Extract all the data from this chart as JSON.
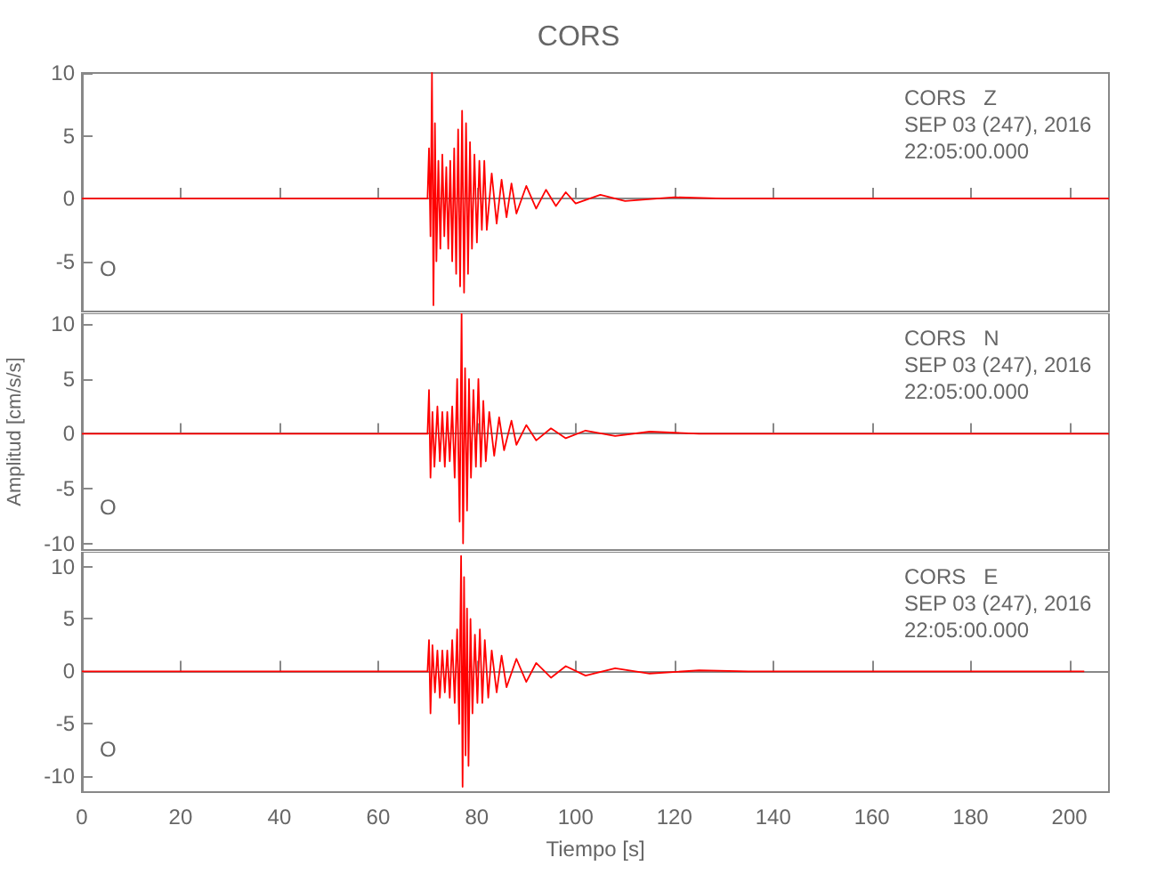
{
  "chart_data": [
    {
      "type": "line",
      "title": "CORS",
      "color": "#ff0000",
      "marker": "none",
      "line_style": "solid",
      "tick_labels": "y",
      "xlim": [
        0,
        208
      ],
      "xticks": [
        0,
        20,
        40,
        60,
        80,
        100,
        120,
        140,
        160,
        180,
        200
      ],
      "ylim": [
        -9,
        10
      ],
      "yticks": [
        -5,
        0,
        5,
        10
      ],
      "annotations": [
        "CORS   Z",
        "SEP 03 (247), 2016",
        "22:05:00.000",
        "O"
      ],
      "x": [
        0,
        70,
        70.3,
        70.6,
        70.9,
        71.2,
        71.5,
        71.8,
        72.2,
        72.6,
        73,
        73.4,
        73.8,
        74.2,
        74.6,
        75,
        75.4,
        75.8,
        76.2,
        76.6,
        77,
        77.4,
        77.8,
        78.2,
        78.6,
        79,
        79.5,
        80,
        80.5,
        81,
        81.5,
        82,
        83,
        84,
        85,
        86,
        87,
        88,
        90,
        92,
        94,
        96,
        98,
        100,
        105,
        110,
        120,
        130,
        208
      ],
      "values": [
        0,
        0,
        4,
        -3,
        10,
        -8.5,
        6,
        -5,
        3,
        -4,
        3.5,
        -3,
        2.5,
        -4,
        3,
        -5,
        4,
        -6,
        5.5,
        -7,
        7,
        -7.5,
        6,
        -6,
        4.5,
        -4,
        3.5,
        -3.5,
        3,
        -2.5,
        3,
        -2.5,
        2,
        -2,
        1.5,
        -1.5,
        1.2,
        -1.2,
        1,
        -0.8,
        0.7,
        -0.6,
        0.5,
        -0.4,
        0.3,
        -0.2,
        0.1,
        0,
        0
      ]
    },
    {
      "type": "line",
      "ylabel": "Amplitud [cm/s/s]",
      "color": "#ff0000",
      "marker": "none",
      "line_style": "solid",
      "tick_labels": "y",
      "xlim": [
        0,
        208
      ],
      "xticks": [
        0,
        20,
        40,
        60,
        80,
        100,
        120,
        140,
        160,
        180,
        200
      ],
      "ylim": [
        -10.6,
        11
      ],
      "yticks": [
        -10,
        -5,
        0,
        5,
        10
      ],
      "annotations": [
        "CORS   N",
        "SEP 03 (247), 2016",
        "22:05:00.000",
        "O"
      ],
      "x": [
        0,
        70,
        70.3,
        70.6,
        71,
        71.4,
        72,
        72.5,
        73,
        73.5,
        74,
        74.5,
        75,
        75.5,
        76,
        76.5,
        76.9,
        77.2,
        77.6,
        78,
        78.4,
        78.8,
        79.3,
        79.8,
        80.3,
        80.8,
        81.3,
        81.8,
        82.5,
        83.5,
        84.5,
        85.5,
        87,
        88,
        90,
        92,
        95,
        98,
        102,
        108,
        115,
        125,
        208
      ],
      "values": [
        0,
        0,
        4,
        -4,
        2,
        -3,
        2.5,
        -2.5,
        2,
        -3,
        2,
        -2.5,
        2.5,
        -4,
        5,
        -8,
        11,
        -10,
        6,
        -7,
        5,
        -4,
        4,
        -3,
        5,
        -3,
        3,
        -2.5,
        2,
        -2,
        1.5,
        -1.5,
        1.2,
        -1,
        0.8,
        -0.6,
        0.5,
        -0.4,
        0.3,
        -0.2,
        0.2,
        0,
        0
      ]
    },
    {
      "type": "line",
      "xlabel": "Tiempo [s]",
      "color": "#ff0000",
      "marker": "none",
      "line_style": "solid",
      "xlim": [
        0,
        208
      ],
      "xticks": [
        0,
        20,
        40,
        60,
        80,
        100,
        120,
        140,
        160,
        180,
        200
      ],
      "ylim": [
        -11.5,
        11.4
      ],
      "yticks": [
        -10,
        -5,
        0,
        5,
        10
      ],
      "annotations": [
        "CORS   E",
        "SEP 03 (247), 2016",
        "22:05:00.000",
        "O"
      ],
      "x": [
        0,
        70,
        70.3,
        70.6,
        71,
        71.5,
        72,
        72.5,
        73,
        73.5,
        74,
        74.5,
        75,
        75.5,
        76,
        76.4,
        76.8,
        77.1,
        77.4,
        77.7,
        78,
        78.3,
        78.7,
        79.1,
        79.6,
        80.1,
        80.6,
        81.1,
        81.6,
        82.3,
        83,
        84,
        85,
        86,
        88,
        90,
        92,
        95,
        98,
        102,
        108,
        115,
        125,
        135,
        203
      ],
      "values": [
        0,
        0,
        3,
        -4,
        2.5,
        -2,
        2,
        -2.5,
        2,
        -2,
        2,
        -2.5,
        3,
        -3,
        4,
        -5,
        11,
        -11,
        9,
        -8,
        6,
        -9,
        5,
        -4,
        3.5,
        -3,
        4,
        -3,
        3,
        -2.5,
        2,
        -2,
        1.5,
        -1.5,
        1.2,
        -1,
        0.8,
        -0.6,
        0.5,
        -0.4,
        0.3,
        -0.2,
        0.1,
        0,
        0
      ]
    }
  ]
}
